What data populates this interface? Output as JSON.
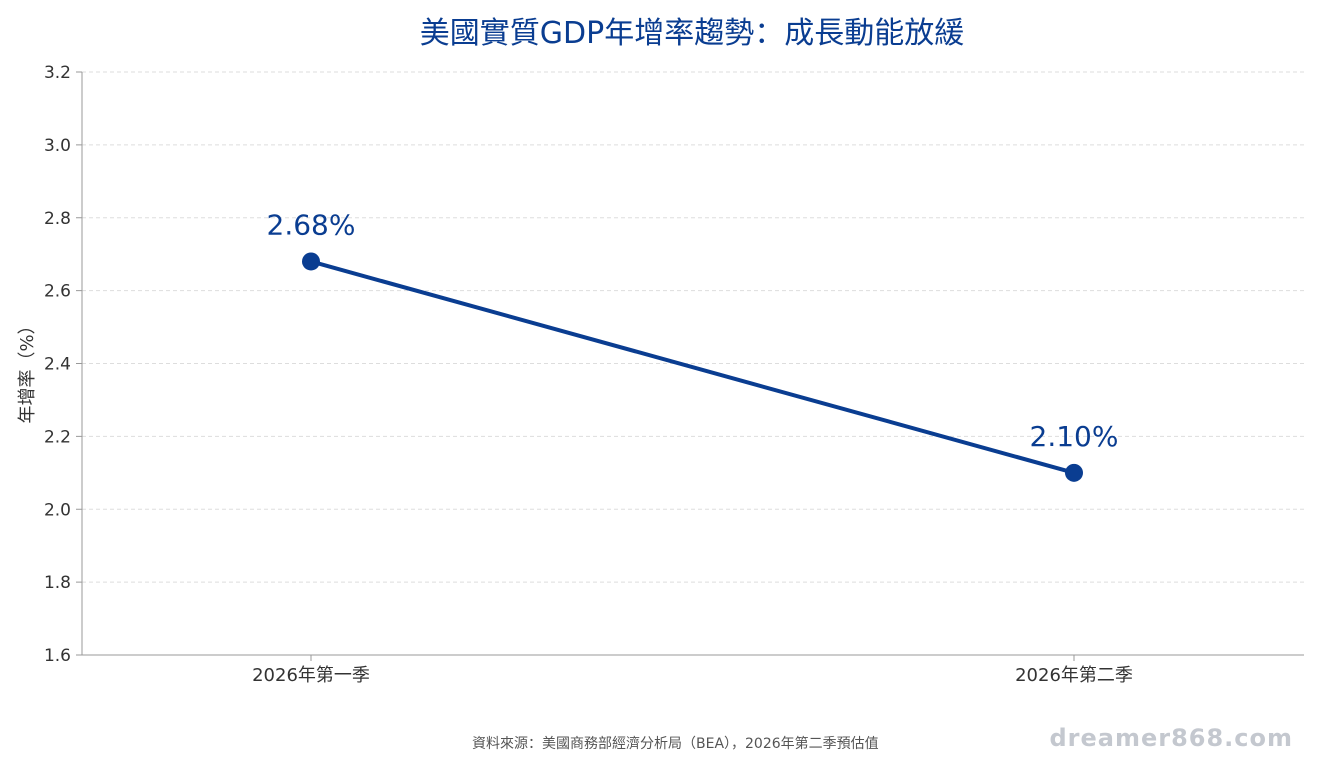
{
  "chart_data": {
    "type": "line",
    "title": "美國實質GDP年增率趨勢：成長動能放緩",
    "xlabel": "",
    "ylabel": "年增率（%）",
    "categories": [
      "2026年第一季",
      "2026年第二季"
    ],
    "series": [
      {
        "values": [
          2.68,
          2.1
        ],
        "labels": [
          "2.68%",
          "2.10%"
        ],
        "color": "#0a3d91"
      }
    ],
    "ylim": [
      1.6,
      3.2
    ],
    "yticks": [
      1.6,
      1.8,
      2.0,
      2.2,
      2.4,
      2.6,
      2.8,
      3.0,
      3.2
    ],
    "ytick_labels": [
      "1.6",
      "1.8",
      "2.0",
      "2.2",
      "2.4",
      "2.6",
      "2.8",
      "3.0",
      "3.2"
    ],
    "grid": "horizontal-dashed",
    "legend": "none"
  },
  "footer": {
    "source": "資料來源：美國商務部經濟分析局（BEA），2026年第二季預估值",
    "watermark": "dreamer868.com"
  },
  "colors": {
    "series": "#0a3d91",
    "title": "#0a3d91",
    "grid": "#dddddd",
    "axis": "#999999"
  }
}
